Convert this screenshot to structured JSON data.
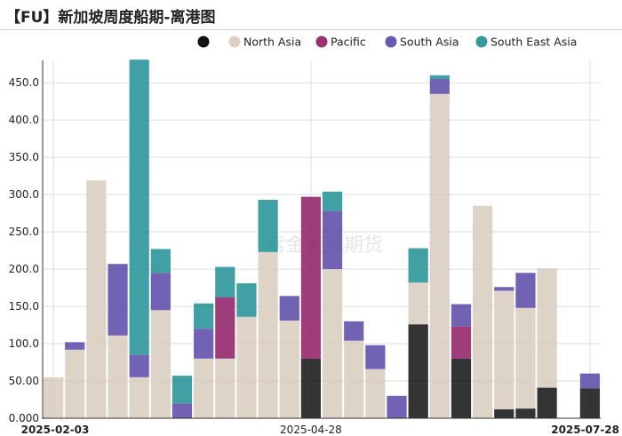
{
  "title": "【FU】新加坡周度船期-离港图",
  "watermark": "紫金天风期货",
  "colors": {
    "unknown": "#111111",
    "North Asia": "#d8cbbd",
    "Pacific": "#8e1a63",
    "South Asia": "#5847a7",
    "South East Asia": "#1e8f93"
  },
  "chart_data": {
    "type": "stacked-bar",
    "title": "【FU】新加坡周度船期-离港图",
    "ylim": [
      0,
      480
    ],
    "yticks": [
      0,
      50,
      100,
      150,
      200,
      250,
      300,
      350,
      400,
      450
    ],
    "ytick_labels": [
      "0.000",
      "50.00",
      "100.0",
      "150.0",
      "200.0",
      "250.0",
      "300.0",
      "350.0",
      "400.0",
      "450.0"
    ],
    "xtick_labels": [
      {
        "index": 0,
        "label": "2025-02-03",
        "bold": true
      },
      {
        "index": 12,
        "label": "2025-04-28",
        "bold": false
      },
      {
        "index": 25,
        "label": "2025-07-28",
        "bold": true
      }
    ],
    "legend": [
      {
        "key": "unknown",
        "label": ""
      },
      {
        "key": "North Asia",
        "label": "North Asia"
      },
      {
        "key": "Pacific",
        "label": "Pacific"
      },
      {
        "key": "South Asia",
        "label": "South Asia"
      },
      {
        "key": "South East Asia",
        "label": "South East Asia"
      }
    ],
    "stack_order": [
      "unknown",
      "North Asia",
      "Pacific",
      "South Asia",
      "South East Asia"
    ],
    "weeks": [
      "2025-02-03",
      "2025-02-10",
      "2025-02-17",
      "2025-02-24",
      "2025-03-03",
      "2025-03-10",
      "2025-03-17",
      "2025-03-24",
      "2025-03-31",
      "2025-04-07",
      "2025-04-14",
      "2025-04-21",
      "2025-04-28",
      "2025-05-05",
      "2025-05-12",
      "2025-05-19",
      "2025-05-26",
      "2025-06-02",
      "2025-06-09",
      "2025-06-16",
      "2025-06-23",
      "2025-06-30",
      "2025-07-07",
      "2025-07-14",
      "2025-07-21",
      "2025-07-28"
    ],
    "series": [
      {
        "name": "unknown",
        "values": [
          0,
          0,
          0,
          0,
          0,
          0,
          0,
          0,
          0,
          0,
          0,
          0,
          80,
          0,
          0,
          0,
          0,
          126,
          0,
          80,
          0,
          12,
          13,
          41,
          0,
          40
        ]
      },
      {
        "name": "North Asia",
        "values": [
          55,
          92,
          319,
          111,
          55,
          145,
          0,
          80,
          80,
          136,
          223,
          131,
          0,
          200,
          104,
          66,
          0,
          56,
          435,
          0,
          285,
          159,
          135,
          160,
          0,
          0
        ]
      },
      {
        "name": "Pacific",
        "values": [
          0,
          0,
          0,
          0,
          0,
          0,
          0,
          0,
          82,
          0,
          0,
          0,
          217,
          0,
          0,
          0,
          0,
          0,
          0,
          43,
          0,
          0,
          0,
          0,
          0,
          0
        ]
      },
      {
        "name": "South Asia",
        "values": [
          0,
          10,
          0,
          96,
          30,
          50,
          20,
          40,
          0,
          0,
          0,
          33,
          0,
          78,
          26,
          32,
          30,
          0,
          20,
          30,
          0,
          5,
          47,
          0,
          0,
          20
        ]
      },
      {
        "name": "South East Asia",
        "values": [
          0,
          0,
          0,
          0,
          396,
          32,
          37,
          34,
          41,
          45,
          70,
          0,
          0,
          26,
          0,
          0,
          0,
          46,
          5,
          0,
          0,
          0,
          0,
          0,
          0,
          0
        ]
      }
    ]
  }
}
